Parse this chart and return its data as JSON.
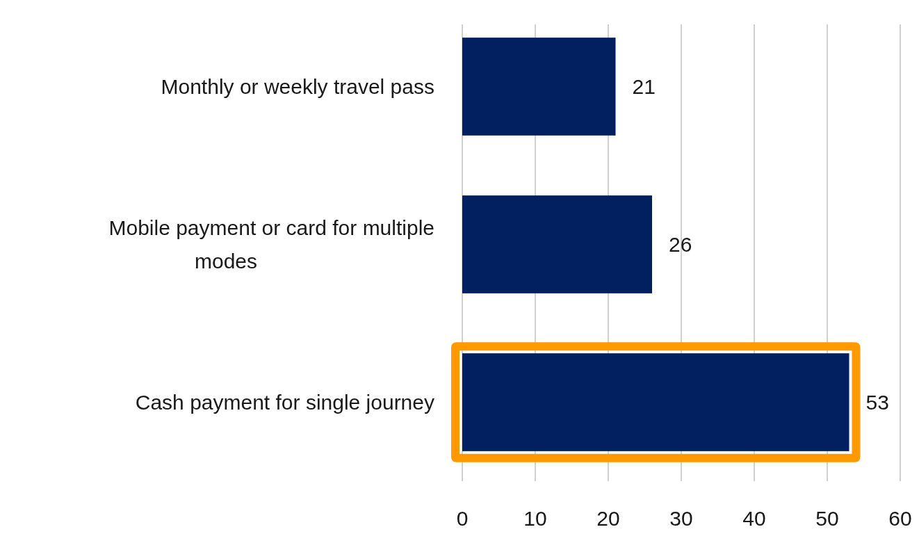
{
  "chart_data": {
    "type": "bar",
    "orientation": "horizontal",
    "categories": [
      "Monthly or weekly travel pass",
      "Mobile payment or card for multiple modes",
      "Cash payment for single journey"
    ],
    "values": [
      21,
      26,
      53
    ],
    "color": "#022060",
    "xlim": [
      0,
      60
    ],
    "xticks": [
      0,
      10,
      20,
      30,
      40,
      50,
      60
    ],
    "grid": "x",
    "data_labels": true
  }
}
